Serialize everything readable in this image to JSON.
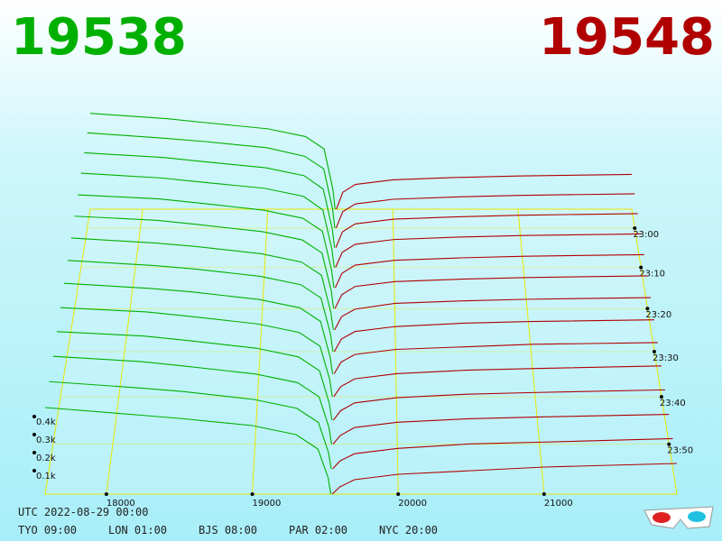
{
  "header": {
    "bid": 19538,
    "ask": 19548
  },
  "chart_data": {
    "type": "depth3d",
    "bid_color": "#00b000",
    "ask_color": "#b00000",
    "grid_color": "#e8e800",
    "xlim": [
      17580,
      21910
    ],
    "xticks": [
      18000,
      19000,
      20000,
      21000
    ],
    "ylim": [
      0,
      400
    ],
    "yticks": [
      {
        "value": 100,
        "label": "0.1k"
      },
      {
        "value": 200,
        "label": "0.2k"
      },
      {
        "value": 300,
        "label": "0.3k"
      },
      {
        "value": 400,
        "label": "0.4k"
      }
    ],
    "tlim": [
      1375,
      1440
    ],
    "tticks": [
      {
        "value": 1380,
        "label": "23:00"
      },
      {
        "value": 1390,
        "label": "23:10"
      },
      {
        "value": 1400,
        "label": "23:20"
      },
      {
        "value": 1410,
        "label": "23:30"
      },
      {
        "value": 1420,
        "label": "23:40"
      },
      {
        "value": 1430,
        "label": "23:50"
      }
    ],
    "bid_prices": [
      17580,
      18200,
      18500,
      19000,
      19300,
      19450,
      19520,
      19538
    ],
    "ask_prices": [
      19548,
      19600,
      19700,
      20000,
      20500,
      21000,
      21910
    ],
    "snapshots": [
      {
        "time": 1375,
        "bid": [
          620,
          585,
          560,
          520,
          470,
          390,
          130,
          0
        ],
        "ask": [
          0,
          110,
          160,
          190,
          205,
          215,
          225
        ]
      },
      {
        "time": 1380,
        "bid": [
          610,
          575,
          555,
          515,
          460,
          380,
          125,
          0
        ],
        "ask": [
          0,
          105,
          155,
          185,
          200,
          210,
          220
        ]
      },
      {
        "time": 1385,
        "bid": [
          600,
          570,
          545,
          505,
          455,
          370,
          120,
          0
        ],
        "ask": [
          0,
          100,
          150,
          180,
          195,
          205,
          215
        ]
      },
      {
        "time": 1390,
        "bid": [
          590,
          560,
          535,
          495,
          445,
          360,
          115,
          0
        ],
        "ask": [
          0,
          95,
          145,
          175,
          190,
          200,
          210
        ]
      },
      {
        "time": 1395,
        "bid": [
          575,
          550,
          525,
          480,
          430,
          350,
          110,
          0
        ],
        "ask": [
          0,
          90,
          140,
          170,
          185,
          195,
          205
        ]
      },
      {
        "time": 1400,
        "bid": [
          565,
          540,
          515,
          470,
          420,
          340,
          110,
          0
        ],
        "ask": [
          0,
          85,
          135,
          165,
          180,
          190,
          200
        ]
      },
      {
        "time": 1405,
        "bid": [
          555,
          525,
          505,
          460,
          410,
          330,
          105,
          0
        ],
        "ask": [
          0,
          80,
          125,
          160,
          175,
          185,
          195
        ]
      },
      {
        "time": 1410,
        "bid": [
          545,
          515,
          495,
          450,
          400,
          320,
          105,
          0
        ],
        "ask": [
          0,
          75,
          120,
          150,
          170,
          180,
          190
        ]
      },
      {
        "time": 1415,
        "bid": [
          535,
          505,
          485,
          440,
          390,
          310,
          100,
          0
        ],
        "ask": [
          0,
          70,
          115,
          145,
          160,
          175,
          185
        ]
      },
      {
        "time": 1420,
        "bid": [
          520,
          495,
          470,
          425,
          375,
          295,
          100,
          0
        ],
        "ask": [
          0,
          60,
          105,
          135,
          155,
          165,
          180
        ]
      },
      {
        "time": 1425,
        "bid": [
          510,
          485,
          460,
          415,
          365,
          285,
          95,
          0
        ],
        "ask": [
          0,
          55,
          100,
          130,
          150,
          160,
          175
        ]
      },
      {
        "time": 1430,
        "bid": [
          500,
          470,
          445,
          400,
          350,
          270,
          95,
          0
        ],
        "ask": [
          0,
          50,
          95,
          125,
          145,
          155,
          170
        ]
      },
      {
        "time": 1435,
        "bid": [
          490,
          455,
          435,
          390,
          340,
          260,
          90,
          0
        ],
        "ask": [
          0,
          45,
          85,
          115,
          140,
          150,
          170
        ]
      },
      {
        "time": 1440,
        "bid": [
          480,
          440,
          420,
          380,
          330,
          250,
          90,
          0
        ],
        "ask": [
          0,
          40,
          80,
          110,
          130,
          150,
          170
        ]
      }
    ]
  },
  "footer": {
    "utc": "UTC 2022-08-29 00:00",
    "zones": [
      "TYO 09:00",
      "LON 01:00",
      "BJS 08:00",
      "PAR 02:00",
      "NYC 20:00"
    ]
  }
}
